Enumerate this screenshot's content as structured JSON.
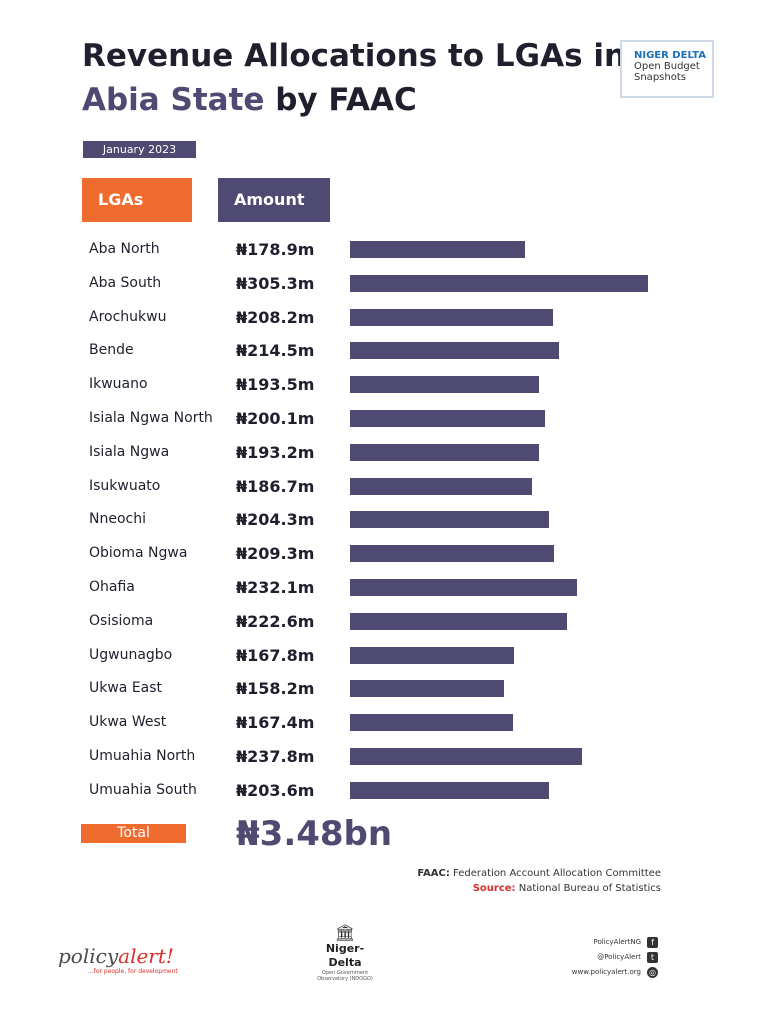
{
  "title": {
    "part1": "Revenue Allocations to LGAs in",
    "accent": "Abia State",
    "part2": " by FAAC"
  },
  "logo": {
    "line1": "NIGER DELTA",
    "line2": "Open Budget",
    "line3": "Snapshots"
  },
  "period": "January 2023",
  "headers": {
    "lga": "LGAs",
    "amount": "Amount"
  },
  "chart_data": {
    "type": "bar",
    "orientation": "horizontal",
    "title": "Revenue Allocations to LGAs in Abia State by FAAC",
    "unit": "₦ million",
    "categories": [
      "Aba North",
      "Aba South",
      "Arochukwu",
      "Bende",
      "Ikwuano",
      "Isiala Ngwa North",
      "Isiala Ngwa",
      "Isukwuato",
      "Nneochi",
      "Obioma Ngwa",
      "Ohafia",
      "Osisioma",
      "Ugwunagbo",
      "Ukwa East",
      "Ukwa West",
      "Umuahia North",
      "Umuahia South"
    ],
    "values": [
      178.9,
      305.3,
      208.2,
      214.5,
      193.5,
      200.1,
      193.2,
      186.7,
      204.3,
      209.3,
      232.1,
      222.6,
      167.8,
      158.2,
      167.4,
      237.8,
      203.6
    ],
    "labels": [
      "₦178.9m",
      "₦305.3m",
      "₦208.2m",
      "₦214.5m",
      "₦193.5m",
      "₦200.1m",
      "₦193.2m",
      "₦186.7m",
      "₦204.3m",
      "₦209.3m",
      "₦232.1m",
      "₦222.6m",
      "₦167.8m",
      "₦158.2m",
      "₦167.4m",
      "₦237.8m",
      "₦203.6m"
    ],
    "bar_color": "#4f4a72"
  },
  "total": {
    "label": "Total",
    "value": "₦3.48bn"
  },
  "notes": {
    "faac_key": "FAAC:",
    "faac_text": " Federation Account Allocation Committee",
    "source_key": "Source:",
    "source_text": " National Bureau of Statistics"
  },
  "footer": {
    "brand_main": "policy",
    "brand_em": "alert!",
    "brand_tag": "...for people, for development",
    "ndo_name": "Niger-Delta",
    "ndo_sub1": "Open Government",
    "ndo_sub2": "Observatory (NDOGO)",
    "social": [
      "PolicyAlertNG",
      "@PolicyAlert",
      "www.policyalert.org"
    ]
  },
  "colors": {
    "orange": "#ef6b2e",
    "purple": "#4f4a72",
    "source_red": "#d9302a"
  }
}
